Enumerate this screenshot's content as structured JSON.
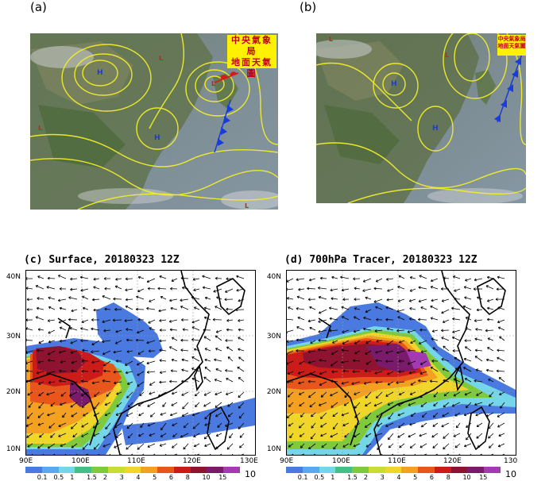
{
  "panels": {
    "a": {
      "label": "(a)"
    },
    "b": {
      "label": "(b)"
    },
    "c": {
      "label": "(c)",
      "title": "Surface, 20180323 12Z"
    },
    "d": {
      "label": "(d)",
      "title": "700hPa Tracer, 20180323 12Z"
    }
  },
  "stamp": {
    "line1": "中央氣象局",
    "line2": "地面天氣圖"
  },
  "pressure_centers": {
    "high": "H",
    "low": "L"
  },
  "lat_labels": [
    "40N",
    "30N",
    "20N",
    "10N"
  ],
  "lon_labels_c": [
    "90E",
    "100E",
    "110E",
    "120E",
    "130E"
  ],
  "lon_labels_d": [
    "90E",
    "100E",
    "110E",
    "120E",
    "130"
  ],
  "colorbar": {
    "levels": [
      "0.1",
      "0.5",
      "1",
      "1.5",
      "2",
      "3",
      "4",
      "5",
      "6",
      "8",
      "10",
      "15"
    ],
    "end_label": "10",
    "colors": [
      "#4a79e0",
      "#5aa8f0",
      "#74d6e8",
      "#44bf88",
      "#7fca3c",
      "#c8dc32",
      "#f0d62a",
      "#f4a020",
      "#e8561c",
      "#cc1c1a",
      "#8e1330",
      "#7a1a6a",
      "#a43ab2"
    ]
  },
  "colors": {
    "isobar": "#f2ee2a",
    "front_cold": "#1a3cd8",
    "front_warm": "#d81a1a",
    "coast": "#000000"
  }
}
